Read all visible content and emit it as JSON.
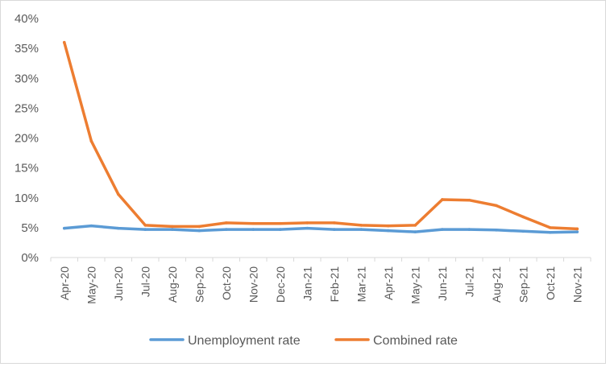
{
  "chart_data": {
    "type": "line",
    "title": "",
    "xlabel": "",
    "ylabel": "",
    "ylim": [
      0,
      40
    ],
    "y_ticks": [
      "0%",
      "5%",
      "10%",
      "15%",
      "20%",
      "25%",
      "30%",
      "35%",
      "40%"
    ],
    "grid": false,
    "legend_position": "bottom",
    "categories": [
      "Apr-20",
      "May-20",
      "Jun-20",
      "Jul-20",
      "Aug-20",
      "Sep-20",
      "Oct-20",
      "Nov-20",
      "Dec-20",
      "Jan-21",
      "Feb-21",
      "Mar-21",
      "Apr-21",
      "May-21",
      "Jun-21",
      "Jul-21",
      "Aug-21",
      "Sep-21",
      "Oct-21",
      "Nov-21"
    ],
    "series": [
      {
        "name": "Unemployment rate",
        "color": "#5b9bd5",
        "values": [
          4.9,
          5.3,
          4.9,
          4.7,
          4.7,
          4.5,
          4.7,
          4.7,
          4.7,
          4.9,
          4.7,
          4.7,
          4.5,
          4.3,
          4.7,
          4.7,
          4.6,
          4.4,
          4.2,
          4.3
        ]
      },
      {
        "name": "Combined rate",
        "color": "#ed7d31",
        "values": [
          36.0,
          19.5,
          10.6,
          5.4,
          5.2,
          5.2,
          5.8,
          5.7,
          5.7,
          5.8,
          5.8,
          5.4,
          5.3,
          5.4,
          9.7,
          9.6,
          8.7,
          6.8,
          5.0,
          4.8
        ]
      }
    ]
  }
}
